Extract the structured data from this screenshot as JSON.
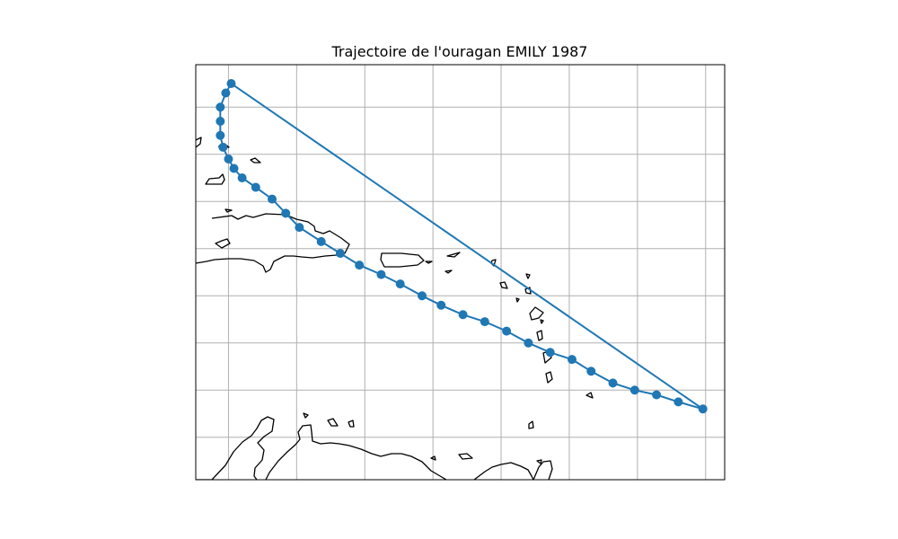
{
  "figure": {
    "title": "Trajectoire de l'ouragan EMILY 1987"
  },
  "chart_data": {
    "type": "line",
    "title": "Trajectoire de l'ouragan EMILY 1987",
    "xlabel": "",
    "ylabel": "",
    "grid": true,
    "axis_labels_shown": false,
    "projection": "PlateCarree",
    "xlim": [
      -73.2,
      -53.8
    ],
    "ylim": [
      9.2,
      26.8
    ],
    "gridlines_lon": [
      -72,
      -69.5,
      -67,
      -64.5,
      -62,
      -59.5,
      -57,
      -54.5
    ],
    "gridlines_lat": [
      11,
      13,
      15,
      17,
      19,
      21,
      23,
      25
    ],
    "colors": {
      "track": "#1f77b4",
      "coast": "#000000",
      "grid": "#b0b0b0"
    },
    "series": [
      {
        "values_lon": [
          -71.9,
          -72.1,
          -72.3,
          -72.3,
          -72.3,
          -72.2,
          -72.0,
          -71.8,
          -71.5,
          -71.0,
          -70.4,
          -69.9,
          -69.4,
          -68.6,
          -67.9,
          -67.2,
          -66.4,
          -65.7,
          -64.9,
          -64.2,
          -63.4,
          -62.6,
          -61.8,
          -61.0,
          -60.2,
          -59.4,
          -58.7,
          -57.9,
          -57.1,
          -56.3,
          -55.5,
          -54.6
        ],
        "values_lat": [
          26.0,
          25.6,
          25.0,
          24.4,
          23.8,
          23.3,
          22.8,
          22.4,
          22.0,
          21.6,
          21.1,
          20.5,
          19.9,
          19.3,
          18.8,
          18.3,
          17.9,
          17.5,
          17.0,
          16.6,
          16.2,
          15.9,
          15.5,
          15.0,
          14.6,
          14.3,
          13.8,
          13.3,
          13.0,
          12.8,
          12.5,
          12.2
        ]
      }
    ]
  }
}
